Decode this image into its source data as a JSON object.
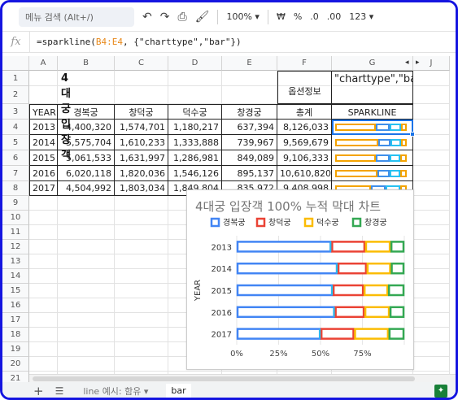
{
  "toolbar": {
    "search_placeholder": "메뉴 검색 (Alt+/)",
    "zoom": "100%",
    "currency": "₩",
    "percent": "%",
    "dec_decrease": ".0",
    "dec_increase": ".00",
    "more_formats": "123"
  },
  "formula": {
    "fx": "fx",
    "prefix": "=sparkline(",
    "ref": "B4:E4",
    "suffix": ", {\"charttype\",\"bar\"})"
  },
  "columns": [
    "A",
    "B",
    "C",
    "D",
    "E",
    "F",
    "G",
    "J"
  ],
  "rows": [
    "1",
    "2",
    "3",
    "4",
    "5",
    "6",
    "7",
    "8",
    "9",
    "10",
    "11",
    "12",
    "13",
    "14",
    "15",
    "16",
    "17",
    "18",
    "19",
    "20",
    "21"
  ],
  "sheet": {
    "title": "4대궁 입장객",
    "option_label": "옵션정보",
    "option_value": "\"charttype\",\"bar\"",
    "headers": [
      "YEAR",
      "경복궁",
      "창덕궁",
      "덕수궁",
      "창경궁",
      "총계",
      "SPARKLINE"
    ],
    "data": [
      [
        "2013",
        "4,400,320",
        "1,574,701",
        "1,180,217",
        "637,394",
        "8,126,033"
      ],
      [
        "2014",
        "5,575,704",
        "1,610,233",
        "1,333,888",
        "739,967",
        "9,569,679"
      ],
      [
        "2015",
        "5,061,533",
        "1,631,997",
        "1,286,981",
        "849,089",
        "9,106,333"
      ],
      [
        "2016",
        "6,020,118",
        "1,820,036",
        "1,546,126",
        "895,137",
        "10,610,820"
      ],
      [
        "2017",
        "4,504,992",
        "1,803,034",
        "1,849,804",
        "835,972",
        "9,408,998"
      ]
    ]
  },
  "sparkline_colors": [
    "#f4a300",
    "#3f8fea",
    "#27c1f0",
    "#f4a300",
    "#3f8fea"
  ],
  "chart_data": {
    "type": "bar",
    "stacked": "100%",
    "orientation": "horizontal",
    "title": "4대궁 입장객 100% 누적 막대 차트",
    "ylabel": "YEAR",
    "xlabel": "",
    "categories": [
      "2013",
      "2014",
      "2015",
      "2016",
      "2017"
    ],
    "series": [
      {
        "name": "경복궁",
        "color": "#4285f4",
        "values": [
          4400320,
          5575704,
          5061533,
          6020118,
          4504992
        ]
      },
      {
        "name": "창덕궁",
        "color": "#ea4335",
        "values": [
          1574701,
          1610233,
          1631997,
          1820036,
          1803034
        ]
      },
      {
        "name": "덕수궁",
        "color": "#fbbc04",
        "values": [
          1180217,
          1333888,
          1286981,
          1546126,
          1849804
        ]
      },
      {
        "name": "창경궁",
        "color": "#34a853",
        "values": [
          637394,
          739967,
          849089,
          895137,
          835972
        ]
      }
    ],
    "x_ticks": [
      "0%",
      "25%",
      "50%",
      "75%"
    ],
    "xlim": [
      0,
      1
    ],
    "legend_position": "top",
    "grid": true
  },
  "tabs": {
    "add": "+",
    "sheet1": "line 예시: 함유",
    "sheet2": "bar"
  }
}
